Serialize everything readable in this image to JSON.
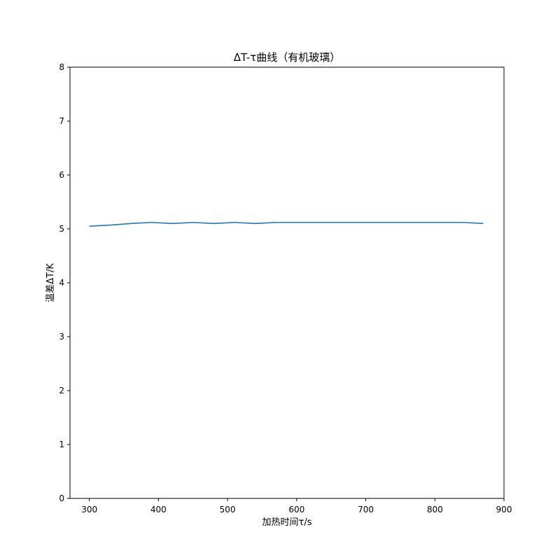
{
  "chart_data": {
    "type": "line",
    "title": "ΔT-τ曲线（有机玻璃）",
    "xlabel": "加热时间τ/s",
    "ylabel": "温差ΔT/K",
    "xlim": [
      272,
      900
    ],
    "ylim": [
      0,
      8
    ],
    "xticks": [
      300,
      400,
      500,
      600,
      700,
      800,
      900
    ],
    "yticks": [
      0,
      1,
      2,
      3,
      4,
      5,
      6,
      7,
      8
    ],
    "grid": false,
    "series": [
      {
        "color": "#1f77b4",
        "x": [
          300,
          330,
          360,
          390,
          420,
          450,
          480,
          510,
          540,
          570,
          600,
          630,
          660,
          690,
          720,
          750,
          780,
          810,
          840,
          870
        ],
        "y": [
          5.05,
          5.07,
          5.1,
          5.12,
          5.1,
          5.12,
          5.1,
          5.12,
          5.1,
          5.12,
          5.12,
          5.12,
          5.12,
          5.12,
          5.12,
          5.12,
          5.12,
          5.12,
          5.12,
          5.1
        ]
      }
    ]
  }
}
